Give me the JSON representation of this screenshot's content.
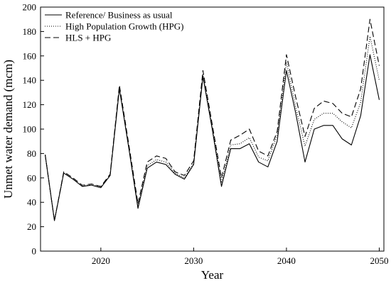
{
  "chart_data": {
    "type": "line",
    "title": "",
    "xlabel": "Year",
    "ylabel": "Unmet water demand (mcm)",
    "xlim": [
      2013.5,
      2050.5
    ],
    "ylim": [
      0,
      200
    ],
    "xticks": [
      2020,
      2030,
      2040,
      2050
    ],
    "yticks": [
      0,
      20,
      40,
      60,
      80,
      100,
      120,
      140,
      160,
      180,
      200
    ],
    "grid": false,
    "legend_position": "top-left",
    "x": [
      2014,
      2015,
      2016,
      2017,
      2018,
      2019,
      2020,
      2021,
      2022,
      2023,
      2024,
      2025,
      2026,
      2027,
      2028,
      2029,
      2030,
      2031,
      2032,
      2033,
      2034,
      2035,
      2036,
      2037,
      2038,
      2039,
      2040,
      2041,
      2042,
      2043,
      2044,
      2045,
      2046,
      2047,
      2048,
      2049,
      2050
    ],
    "series": [
      {
        "name": "Reference/ Business as usual",
        "style": "solid",
        "color": "#000000",
        "values": [
          79,
          25,
          64,
          59,
          53,
          54,
          52,
          62,
          133,
          85,
          35,
          68,
          73,
          71,
          63,
          59,
          71,
          143,
          100,
          53,
          84,
          84,
          88,
          73,
          69,
          90,
          148,
          113,
          73,
          100,
          103,
          103,
          92,
          87,
          111,
          161,
          124
        ]
      },
      {
        "name": "High Population Growth (HPG)",
        "style": "dotted",
        "color": "#000000",
        "values": [
          79,
          25,
          64,
          59,
          53,
          55,
          52,
          62,
          134,
          86,
          37,
          70,
          75,
          73,
          64,
          60,
          72,
          145,
          102,
          56,
          87,
          88,
          93,
          77,
          74,
          95,
          155,
          118,
          86,
          108,
          113,
          113,
          106,
          101,
          122,
          176,
          140
        ]
      },
      {
        "name": "HLS + HPG",
        "style": "dashed",
        "color": "#000000",
        "values": [
          79,
          25,
          65,
          60,
          54,
          55,
          53,
          63,
          136,
          88,
          39,
          73,
          78,
          76,
          65,
          62,
          74,
          148,
          104,
          60,
          91,
          95,
          100,
          82,
          78,
          98,
          161,
          126,
          94,
          117,
          123,
          121,
          113,
          110,
          133,
          190,
          152
        ]
      }
    ]
  }
}
